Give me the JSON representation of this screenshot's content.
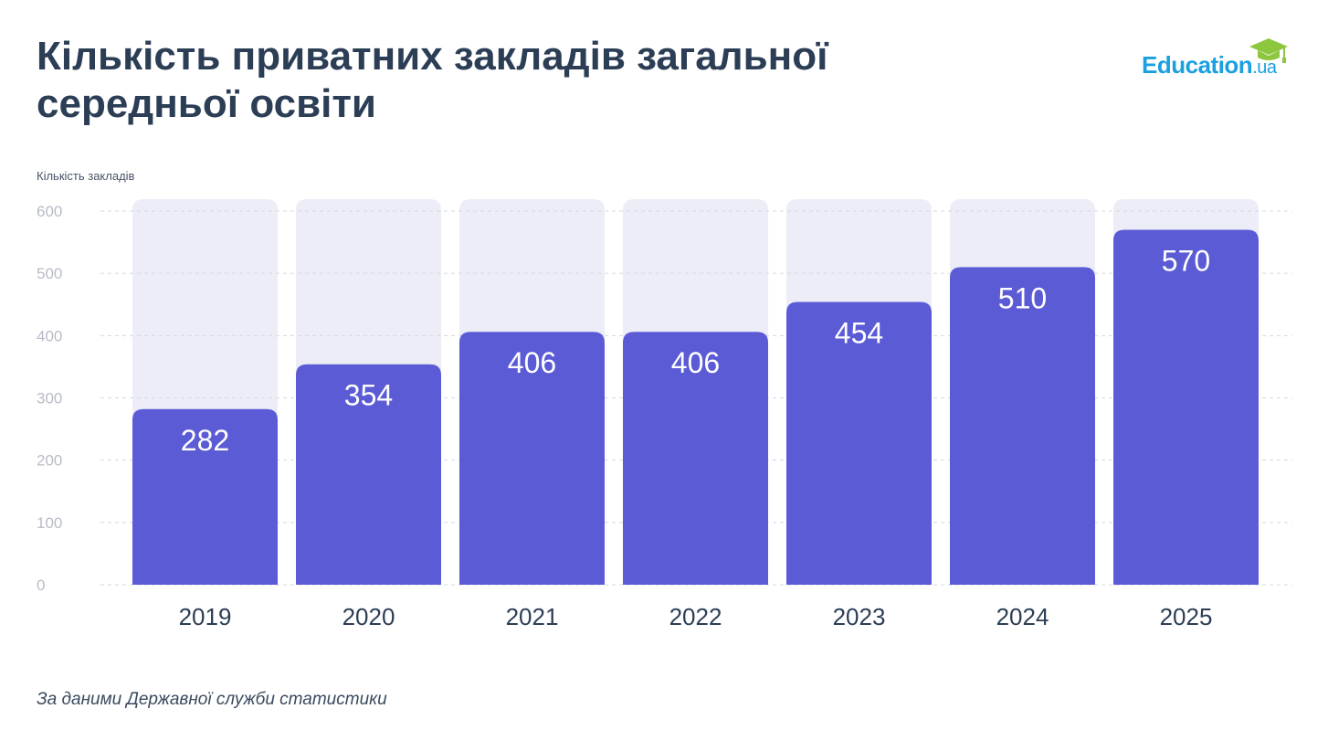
{
  "header": {
    "title": "Кількість приватних закладів загальної середньої освіти",
    "logo_text": "Education",
    "logo_tld": ".ua"
  },
  "footer": {
    "source": "За даними Державної служби статистики"
  },
  "colors": {
    "bar": "#5b5bd6",
    "bar_background": "#ededf8",
    "title": "#2c3e55",
    "logo": "#1aa0e0",
    "logo_cap": "#8dc63f",
    "axis_text": "#b8bcc6",
    "grid": "#d5d8de"
  },
  "chart_data": {
    "type": "bar",
    "ylabel": "Кількість закладів",
    "xlabel": "",
    "categories": [
      "2019",
      "2020",
      "2021",
      "2022",
      "2023",
      "2024",
      "2025"
    ],
    "values": [
      282,
      354,
      406,
      406,
      454,
      510,
      570
    ],
    "ylim": [
      0,
      600
    ],
    "yticks": [
      0,
      100,
      200,
      300,
      400,
      500,
      600
    ],
    "grid": true,
    "data_labels": true
  }
}
